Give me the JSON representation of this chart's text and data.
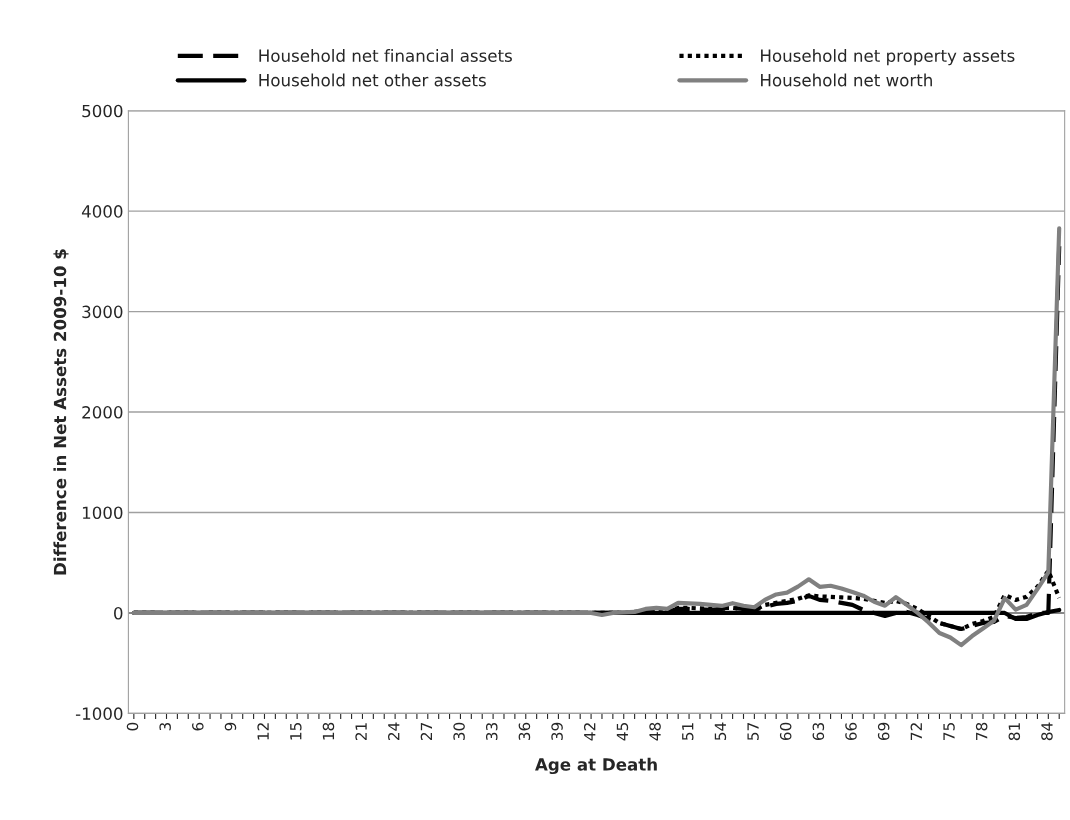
{
  "chart_data": {
    "type": "line",
    "xlabel": "Age at Death",
    "ylabel": "Difference in Net Assets 2009-10 $",
    "categories": [
      "0",
      null,
      null,
      "3",
      null,
      null,
      "6",
      null,
      null,
      "9",
      null,
      null,
      "12",
      null,
      null,
      "15",
      null,
      null,
      "18",
      null,
      null,
      "21",
      null,
      null,
      "24",
      null,
      null,
      "27",
      null,
      null,
      "30",
      null,
      null,
      "33",
      null,
      null,
      "36",
      null,
      null,
      "39",
      null,
      null,
      "42",
      null,
      null,
      "45",
      null,
      null,
      "48",
      null,
      null,
      "51",
      null,
      null,
      "54",
      null,
      null,
      "57",
      null,
      null,
      "60",
      null,
      null,
      "63",
      null,
      null,
      "66",
      null,
      null,
      "69",
      null,
      null,
      "72",
      null,
      null,
      "75",
      null,
      null,
      "78",
      null,
      null,
      "81",
      null,
      null,
      "84",
      null
    ],
    "series": [
      {
        "name": "Household net financial assets",
        "color": "#000000",
        "line_style": "dashed",
        "values": [
          0,
          0,
          0,
          0,
          0,
          0,
          0,
          0,
          0,
          0,
          0,
          0,
          0,
          0,
          0,
          0,
          0,
          0,
          0,
          0,
          0,
          0,
          0,
          0,
          0,
          0,
          0,
          0,
          0,
          0,
          0,
          0,
          0,
          0,
          0,
          0,
          0,
          0,
          0,
          0,
          0,
          0,
          0,
          0,
          0,
          0,
          5,
          10,
          20,
          15,
          40,
          40,
          35,
          30,
          40,
          50,
          40,
          30,
          60,
          90,
          100,
          120,
          170,
          130,
          120,
          100,
          80,
          30,
          0,
          -30,
          0,
          10,
          -20,
          -60,
          -100,
          -130,
          -160,
          -130,
          -100,
          -90,
          -30,
          -50,
          -40,
          0,
          0,
          3650
        ]
      },
      {
        "name": "Household net property assets",
        "color": "#000000",
        "line_style": "dotted",
        "values": [
          0,
          0,
          0,
          0,
          0,
          0,
          0,
          0,
          0,
          0,
          0,
          0,
          0,
          0,
          0,
          0,
          0,
          0,
          0,
          0,
          0,
          0,
          0,
          0,
          0,
          0,
          0,
          0,
          0,
          0,
          0,
          0,
          0,
          0,
          0,
          0,
          0,
          0,
          0,
          0,
          0,
          0,
          0,
          0,
          0,
          0,
          10,
          20,
          30,
          20,
          50,
          50,
          45,
          40,
          50,
          50,
          40,
          30,
          80,
          100,
          120,
          140,
          175,
          165,
          160,
          155,
          150,
          140,
          120,
          100,
          120,
          90,
          40,
          -30,
          -100,
          -130,
          -160,
          -110,
          -80,
          -40,
          180,
          130,
          160,
          260,
          420,
          150
        ]
      },
      {
        "name": "Household net other assets",
        "color": "#000000",
        "line_style": "solid",
        "values": [
          0,
          0,
          0,
          0,
          0,
          0,
          0,
          0,
          0,
          0,
          0,
          0,
          0,
          0,
          0,
          0,
          0,
          0,
          0,
          0,
          0,
          0,
          0,
          0,
          0,
          0,
          0,
          0,
          0,
          0,
          0,
          0,
          0,
          0,
          0,
          0,
          0,
          0,
          0,
          0,
          0,
          0,
          0,
          0,
          0,
          0,
          0,
          0,
          0,
          0,
          0,
          0,
          0,
          0,
          0,
          0,
          0,
          0,
          0,
          0,
          0,
          0,
          0,
          0,
          0,
          0,
          0,
          0,
          0,
          0,
          0,
          0,
          0,
          0,
          0,
          0,
          0,
          0,
          0,
          0,
          0,
          -60,
          -60,
          -20,
          10,
          30
        ]
      },
      {
        "name": "Household net worth",
        "color": "#808080",
        "line_style": "solid",
        "values": [
          0,
          0,
          0,
          0,
          0,
          0,
          0,
          0,
          0,
          0,
          0,
          0,
          0,
          0,
          0,
          0,
          0,
          0,
          0,
          0,
          0,
          0,
          0,
          0,
          0,
          0,
          0,
          0,
          0,
          0,
          0,
          0,
          0,
          0,
          0,
          0,
          0,
          0,
          0,
          0,
          0,
          0,
          0,
          -20,
          0,
          5,
          10,
          40,
          50,
          40,
          100,
          95,
          90,
          80,
          70,
          97,
          72,
          57,
          133,
          184,
          202,
          262,
          335,
          260,
          271,
          244,
          208,
          172,
          112,
          72,
          157,
          81,
          0,
          -94,
          -200,
          -244,
          -320,
          -230,
          -154,
          -78,
          148,
          33,
          81,
          238,
          404,
          3830
        ]
      }
    ],
    "ylim": [
      -1000,
      5000
    ],
    "yticks": [
      -1000,
      0,
      1000,
      2000,
      3000,
      4000,
      5000
    ],
    "grid": "y",
    "legend": "top",
    "marker": "none"
  }
}
